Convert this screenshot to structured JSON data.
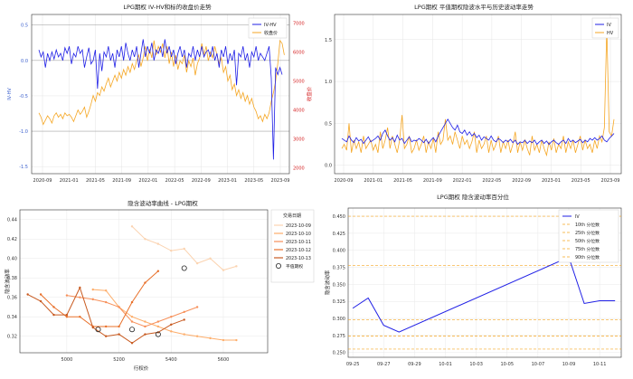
{
  "chart_data": [
    {
      "type": "line",
      "title": "LPG期权 IV-HV和标的收盘价走势",
      "ylabel": "IV-HV",
      "y2label": "收盘价",
      "x_ticks": [
        "2020-09",
        "2021-01",
        "2021-05",
        "2021-09",
        "2022-01",
        "2022-05",
        "2022-09",
        "2023-01",
        "2023-05",
        "2023-09"
      ],
      "ylim": [
        -1.6,
        0.65
      ],
      "y_ticks": [
        "0.5",
        "0.0",
        "-0.5",
        "-1.0",
        "-1.5"
      ],
      "y2lim": [
        1800,
        7300
      ],
      "y2_ticks": [
        "7000",
        "6000",
        "5000",
        "4000",
        "3000",
        "2000"
      ],
      "hlines": [
        0.5,
        0.0,
        -1.0
      ],
      "legend_position": "top-right",
      "colors": {
        "iv_hv": "#1f1fe6",
        "close": "#f5a623",
        "y2_axis": "#d62728"
      },
      "series": [
        {
          "name": "IV-HV",
          "values": [
            0.15,
            0.05,
            0.12,
            -0.1,
            0.1,
            0.0,
            0.12,
            0.02,
            0.15,
            0.05,
            0.1,
            0.0,
            0.18,
            0.1,
            0.2,
            -0.05,
            0.1,
            0.05,
            0.2,
            0.1,
            0.15,
            -0.1,
            0.05,
            0.18,
            -0.05,
            0.0,
            0.15,
            -0.4,
            0.1,
            -0.15,
            0.12,
            0.05,
            0.2,
            0.0,
            0.1,
            -0.1,
            0.15,
            0.05,
            0.2,
            0.0,
            0.25,
            0.1,
            0.0,
            0.15,
            0.05,
            0.2,
            -0.1,
            0.1,
            0.3,
            0.05,
            0.2,
            0.1,
            0.25,
            0.0,
            0.15,
            0.1,
            0.2,
            0.05,
            0.3,
            0.1,
            0.2,
            0.05,
            0.15,
            -0.05,
            0.1,
            0.2,
            0.05,
            0.15,
            -0.1,
            0.1,
            0.05,
            0.2,
            0.0,
            0.15,
            0.05,
            0.2,
            0.05,
            0.12,
            0.15,
            0.05,
            0.2,
            0.0,
            0.1,
            -0.1,
            0.15,
            0.05,
            0.2,
            -0.05,
            0.1,
            0.0,
            0.15,
            -0.35,
            0.1,
            0.05,
            0.2,
            0.0,
            0.1,
            -0.1,
            0.12,
            0.05,
            0.2,
            0.0,
            0.1,
            0.05,
            0.0,
            0.1,
            0.2,
            -0.25,
            -1.4,
            -0.1,
            -0.2,
            -0.1,
            -0.2
          ]
        },
        {
          "name": "收盘价",
          "values": [
            3900,
            3750,
            3500,
            3650,
            3800,
            3700,
            3550,
            3800,
            3900,
            3750,
            3850,
            3700,
            3900,
            3800,
            3850,
            3750,
            3600,
            3800,
            4000,
            3850,
            3950,
            4100,
            3750,
            3950,
            4200,
            4500,
            4300,
            4600,
            4500,
            4800,
            4650,
            4900,
            5100,
            4800,
            5000,
            5200,
            5000,
            5300,
            5100,
            5400,
            5200,
            5500,
            5300,
            5600,
            5400,
            5700,
            5900,
            5500,
            5800,
            6200,
            5700,
            6100,
            5800,
            6400,
            5900,
            6200,
            6000,
            6300,
            5800,
            6200,
            5600,
            6000,
            5500,
            5900,
            5400,
            5700,
            5600,
            5900,
            5300,
            5700,
            5500,
            5800,
            5200,
            5600,
            5800,
            6300,
            5900,
            6200,
            5700,
            6000,
            5800,
            6200,
            5900,
            5600,
            5800,
            5300,
            5500,
            5000,
            5200,
            4700,
            4900,
            4500,
            4700,
            4400,
            4600,
            4300,
            4500,
            4200,
            4400,
            4100,
            3950,
            3700,
            3800,
            3600,
            3850,
            3700,
            3900,
            4300,
            4600,
            5000,
            5600,
            6400,
            6300,
            5900
          ]
        }
      ]
    },
    {
      "type": "line",
      "title": "LPG期权 平值期权隐波水平与历史波动率走势",
      "x_ticks": [
        "2020-09",
        "2021-01",
        "2021-05",
        "2021-09",
        "2022-01",
        "2022-05",
        "2022-09",
        "2023-01",
        "2023-05",
        "2023-09"
      ],
      "ylim": [
        -0.1,
        1.8
      ],
      "y_ticks": [
        "1.5",
        "1.0",
        "0.5",
        "0.0"
      ],
      "legend_position": "top-right",
      "colors": {
        "iv": "#1f1fe6",
        "hv": "#f5a623"
      },
      "series": [
        {
          "name": "IV",
          "values": [
            0.32,
            0.3,
            0.28,
            0.35,
            0.3,
            0.27,
            0.33,
            0.29,
            0.31,
            0.26,
            0.3,
            0.34,
            0.28,
            0.3,
            0.32,
            0.35,
            0.3,
            0.38,
            0.42,
            0.35,
            0.3,
            0.33,
            0.28,
            0.36,
            0.3,
            0.32,
            0.26,
            0.3,
            0.34,
            0.28,
            0.3,
            0.29,
            0.32,
            0.3,
            0.27,
            0.31,
            0.26,
            0.3,
            0.33,
            0.28,
            0.35,
            0.4,
            0.45,
            0.5,
            0.55,
            0.5,
            0.45,
            0.42,
            0.48,
            0.4,
            0.38,
            0.42,
            0.36,
            0.4,
            0.35,
            0.38,
            0.33,
            0.36,
            0.3,
            0.34,
            0.32,
            0.3,
            0.35,
            0.3,
            0.28,
            0.32,
            0.3,
            0.27,
            0.3,
            0.28,
            0.31,
            0.27,
            0.3,
            0.25,
            0.28,
            0.27,
            0.3,
            0.26,
            0.29,
            0.27,
            0.3,
            0.25,
            0.28,
            0.3,
            0.26,
            0.29,
            0.25,
            0.28,
            0.3,
            0.27,
            0.25,
            0.28,
            0.3,
            0.26,
            0.32,
            0.28,
            0.3,
            0.27,
            0.29,
            0.31,
            0.27,
            0.3,
            0.28,
            0.32,
            0.3,
            0.33,
            0.3,
            0.32,
            0.35,
            0.3,
            0.28,
            0.32,
            0.35,
            0.38
          ]
        },
        {
          "name": "HV",
          "values": [
            0.2,
            0.25,
            0.18,
            0.5,
            0.15,
            0.3,
            0.2,
            0.28,
            0.15,
            0.35,
            0.2,
            0.25,
            0.3,
            0.18,
            0.25,
            0.15,
            0.4,
            0.2,
            0.3,
            0.45,
            0.2,
            0.35,
            0.25,
            0.15,
            0.3,
            0.6,
            0.2,
            0.25,
            0.35,
            0.15,
            0.2,
            0.3,
            0.18,
            0.25,
            0.35,
            0.15,
            0.28,
            0.2,
            0.32,
            0.15,
            0.4,
            0.25,
            0.3,
            0.55,
            0.3,
            0.35,
            0.25,
            0.4,
            0.3,
            0.2,
            0.35,
            0.25,
            0.3,
            0.2,
            0.28,
            0.4,
            0.15,
            0.3,
            0.2,
            0.25,
            0.35,
            0.15,
            0.3,
            0.18,
            0.25,
            0.35,
            0.15,
            0.28,
            0.2,
            0.3,
            0.15,
            0.25,
            0.4,
            0.15,
            0.28,
            0.18,
            0.3,
            0.2,
            0.12,
            0.35,
            0.18,
            0.25,
            0.15,
            0.3,
            0.2,
            0.12,
            0.28,
            0.18,
            0.32,
            0.15,
            0.25,
            0.2,
            0.35,
            0.15,
            0.28,
            0.2,
            0.3,
            0.15,
            0.25,
            0.35,
            0.18,
            0.3,
            0.2,
            0.25,
            0.15,
            0.3,
            0.2,
            0.35,
            0.28,
            0.45,
            1.65,
            0.4,
            0.35,
            0.55
          ]
        }
      ]
    },
    {
      "type": "line",
      "title": "隐含波动率曲线 - LPG期权",
      "xlabel": "行权价",
      "ylabel": "隐含波动率",
      "xlim": [
        4820,
        5770
      ],
      "x_ticks": [
        "5000",
        "5200",
        "5400",
        "5600"
      ],
      "ylim": [
        0.303,
        0.45
      ],
      "y_ticks": [
        "0.44",
        "0.42",
        "0.40",
        "0.38",
        "0.36",
        "0.34",
        "0.32"
      ],
      "legend_title": "交易日期",
      "legend_position": "top-right",
      "atm_label": "平值期权",
      "series": [
        {
          "name": "2023-10-09",
          "color": "#fbd3b0",
          "x": [
            5250,
            5300,
            5350,
            5400,
            5450,
            5500,
            5550,
            5600,
            5650
          ],
          "values": [
            0.433,
            0.42,
            0.415,
            0.408,
            0.41,
            0.395,
            0.4,
            0.388,
            0.392
          ]
        },
        {
          "name": "2023-10-10",
          "color": "#fdae6b",
          "x": [
            5100,
            5150,
            5200,
            5250,
            5300,
            5350,
            5400,
            5450,
            5500,
            5550,
            5600,
            5650
          ],
          "values": [
            0.368,
            0.367,
            0.35,
            0.34,
            0.335,
            0.33,
            0.325,
            0.322,
            0.32,
            0.318,
            0.316,
            0.316
          ]
        },
        {
          "name": "2023-10-11",
          "color": "#f7905a",
          "x": [
            5000,
            5050,
            5100,
            5150,
            5200,
            5250,
            5300,
            5350,
            5400,
            5450,
            5500
          ],
          "values": [
            0.362,
            0.36,
            0.358,
            0.355,
            0.35,
            0.335,
            0.33,
            0.335,
            0.34,
            0.345,
            0.35
          ]
        },
        {
          "name": "2023-10-12",
          "color": "#e8702a",
          "x": [
            4900,
            4950,
            5000,
            5050,
            5100,
            5150,
            5200,
            5250,
            5300,
            5350
          ],
          "values": [
            0.363,
            0.35,
            0.34,
            0.34,
            0.33,
            0.33,
            0.33,
            0.355,
            0.375,
            0.387
          ]
        },
        {
          "name": "2023-10-13",
          "color": "#c85a20",
          "x": [
            4850,
            4900,
            4950,
            5000,
            5050,
            5100,
            5150,
            5200,
            5250,
            5300,
            5350,
            5400,
            5450
          ],
          "values": [
            0.363,
            0.356,
            0.342,
            0.342,
            0.37,
            0.329,
            0.32,
            0.322,
            0.313,
            0.322,
            0.324,
            0.332,
            0.337
          ]
        }
      ],
      "atm_points": [
        {
          "x": 5120,
          "y": 0.327
        },
        {
          "x": 5250,
          "y": 0.327
        },
        {
          "x": 5350,
          "y": 0.322
        },
        {
          "x": 5450,
          "y": 0.39
        }
      ]
    },
    {
      "type": "line",
      "title": "LPG期权 隐含波动率百分位",
      "ylabel": "隐含波动率",
      "x_ticks": [
        "09-25",
        "09-27",
        "09-29",
        "10-01",
        "10-03",
        "10-05",
        "10-07",
        "10-09",
        "10-11"
      ],
      "x": [
        "09-25",
        "09-26",
        "09-27",
        "09-28",
        "10-09",
        "10-10",
        "10-11",
        "10-12"
      ],
      "ylim": [
        0.243,
        0.462
      ],
      "y_ticks": [
        "0.450",
        "0.425",
        "0.400",
        "0.375",
        "0.350",
        "0.325",
        "0.300",
        "0.275",
        "0.250"
      ],
      "legend_position": "top-right",
      "series": [
        {
          "name": "IV",
          "color": "#1f1fe6",
          "values": [
            0.315,
            0.33,
            0.29,
            0.28,
            0.39,
            0.322,
            0.326,
            0.326
          ]
        }
      ],
      "percentiles": [
        {
          "name": "10th 分位数",
          "value": 0.255
        },
        {
          "name": "25th 分位数",
          "value": 0.274
        },
        {
          "name": "50th 分位数",
          "value": 0.298
        },
        {
          "name": "75th 分位数",
          "value": 0.378
        },
        {
          "name": "90th 分位数",
          "value": 0.45
        }
      ]
    }
  ]
}
